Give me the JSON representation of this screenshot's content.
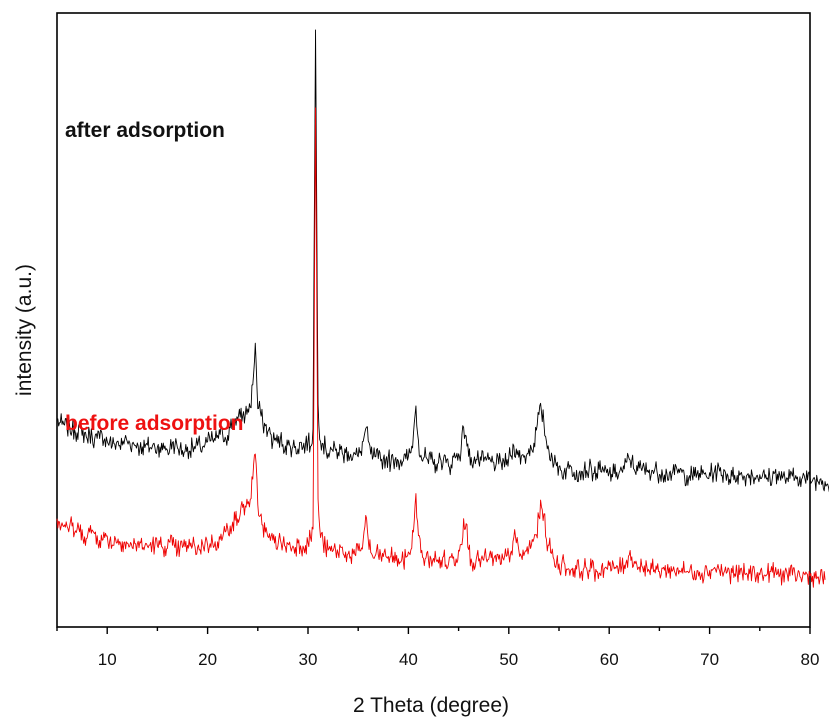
{
  "chart_data": {
    "type": "line",
    "title": "",
    "xlabel": "2 Theta (degree)",
    "ylabel": "intensity (a.u.)",
    "xlim": [
      5,
      80
    ],
    "x_ticks": [
      10,
      20,
      30,
      40,
      50,
      60,
      70,
      80
    ],
    "y_ticks_shown": false,
    "grid": false,
    "legend": "inline labels",
    "x_step": 0.25,
    "series": [
      {
        "name": "after adsorption",
        "color": "#000000",
        "peaks_2theta": [
          24.3,
          31.4,
          37.7,
          41.6,
          45.3,
          49.6,
          51.8,
          60.2
        ],
        "values": [
          67.4,
          66.2,
          65.5,
          65.2,
          63.7,
          65.1,
          62.7,
          63.2,
          61.8,
          64.7,
          60.7,
          61.9,
          59.2,
          61.5,
          60.4,
          59.1,
          59.4,
          59.3,
          61.1,
          59.2,
          58.2,
          58.2,
          56.1,
          56.9,
          58.1,
          56.3,
          56.5,
          59.1,
          58.0,
          57.5,
          57.2,
          56.3,
          57.4,
          54.9,
          55.7,
          55.4,
          56.5,
          55.3,
          56.0,
          55.5,
          55.7,
          55.7,
          54.4,
          56.1,
          54.2,
          55.0,
          57.6,
          56.3,
          55.2,
          54.9,
          54.1,
          53.6,
          55.6,
          53.9,
          55.9,
          54.9,
          56.4,
          56.1,
          55.7,
          56.9,
          58.0,
          58.2,
          58.9,
          58.5,
          60.7,
          61.1,
          61.2,
          59.9,
          60.7,
          64.0,
          67.0,
          68.0,
          67.8,
          68.6,
          69.3,
          69.6,
          72.2,
          73.0,
          82.7,
          100.8,
          72.3,
          71.3,
          65.9,
          64.9,
          62.4,
          61.5,
          57.7,
          59.5,
          57.3,
          59.2,
          56.7,
          56.1,
          56.5,
          55.7,
          55.8,
          55.9,
          54.8,
          57.7,
          55.4,
          56.8,
          58.1,
          55.9,
          63.4,
          237.0,
          74.3,
          58.0,
          57.0,
          55.6,
          52.9,
          55.6,
          53.7,
          54.2,
          53.3,
          54.6,
          52.1,
          53.2,
          53.6,
          52.5,
          52.0,
          52.3,
          51.4,
          53.8,
          58.1,
          63.6,
          58.3,
          52.6,
          51.6,
          51.4,
          50.6,
          49.6,
          50.5,
          50.1,
          51.3,
          48.4,
          49.9,
          51.1,
          49.6,
          50.1,
          49.6,
          50.5,
          51.5,
          53.2,
          61.3,
          73.5,
          58.5,
          52.1,
          50.8,
          51.3,
          48.4,
          50.3,
          48.1,
          48.1,
          48.8,
          49.8,
          50.6,
          48.8,
          47.4,
          47.9,
          51.3,
          51.4,
          52.7,
          54.5,
          64.2,
          60.5,
          51.6,
          51.1,
          49.5,
          50.3,
          49.4,
          49.9,
          49.4,
          49.9,
          50.2,
          49.1,
          49.0,
          48.4,
          48.3,
          48.6,
          49.6,
          47.9,
          51.1,
          51.8,
          56.1,
          54.8,
          51.2,
          51.7,
          51.2,
          51.8,
          54.9,
          55.0,
          57.3,
          63.0,
          69.8,
          71.1,
          66.0,
          58.0,
          54.0,
          53.0,
          48.2,
          47.5,
          47.2,
          45.3,
          44.7,
          46.1,
          46.2,
          46.9,
          44.7,
          45.5,
          44.4,
          45.1,
          45.6,
          45.4,
          46.0,
          45.8,
          44.1,
          44.2,
          45.9,
          44.7,
          44.7,
          44.5,
          44.3,
          43.8,
          44.1,
          44.7,
          44.6,
          45.5,
          46.1,
          49.1,
          50.4,
          49.8,
          45.8,
          47.6,
          46.5,
          45.4,
          46.4,
          44.8,
          45.7,
          45.5,
          45.2,
          45.3,
          43.7,
          45.8,
          43.5,
          44.1,
          44.5,
          43.9,
          43.6,
          45.9,
          44.6,
          44.6,
          42.9,
          43.3,
          43.2,
          43.4,
          43.0,
          43.9,
          44.2,
          43.7,
          43.9,
          42.3,
          44.5,
          44.1,
          45.3,
          44.8,
          45.2,
          43.4,
          45.5,
          44.0,
          41.6,
          42.9,
          43.4,
          43.3,
          43.4,
          42.9,
          42.5,
          43.6,
          43.5,
          43.7,
          42.3,
          43.4,
          43.6,
          42.9,
          42.1,
          42.2,
          42.6,
          41.9,
          44.5,
          43.8,
          43.3,
          42.1,
          42.1,
          42.1,
          42.0,
          43.0,
          41.9,
          42.6,
          42.7,
          42.3,
          41.7,
          41.3,
          42.5,
          41.0,
          41.3,
          40.9,
          41.6,
          41.0,
          40.6,
          39.6,
          39.0
        ]
      },
      {
        "name": "before adsorption",
        "color": "#ee0000",
        "peaks_2theta": [
          24.3,
          31.4,
          37.7,
          41.6,
          45.3,
          49.6,
          51.8,
          60.2
        ],
        "values": [
          24.5,
          23.0,
          22.7,
          21.8,
          21.2,
          21.0,
          21.3,
          18.2,
          19.9,
          18.8,
          19.7,
          16.6,
          16.0,
          18.7,
          19.6,
          18.0,
          17.1,
          15.0,
          15.1,
          16.3,
          17.0,
          14.8,
          13.0,
          16.8,
          14.0,
          14.6,
          14.5,
          14.4,
          13.8,
          12.6,
          11.8,
          13.6,
          13.6,
          14.4,
          11.2,
          12.6,
          12.6,
          13.0,
          13.5,
          13.0,
          12.7,
          13.2,
          12.1,
          12.5,
          11.6,
          14.2,
          12.9,
          11.9,
          10.3,
          11.9,
          12.0,
          12.3,
          12.9,
          12.5,
          12.7,
          12.2,
          11.9,
          11.0,
          13.6,
          14.1,
          13.1,
          13.6,
          14.1,
          14.5,
          14.4,
          15.5,
          16.3,
          18.7,
          20.3,
          21.3,
          23.0,
          23.8,
          24.4,
          26.5,
          29.4,
          30.0,
          30.9,
          32.9,
          41.7,
          52.6,
          30.5,
          25.8,
          21.7,
          18.7,
          16.7,
          15.0,
          15.2,
          16.7,
          12.5,
          15.3,
          13.6,
          12.3,
          13.6,
          12.1,
          12.6,
          12.0,
          13.9,
          12.7,
          12.6,
          12.8,
          14.1,
          16.3,
          20.0,
          203.1,
          33.1,
          16.3,
          14.4,
          11.7,
          10.8,
          10.5,
          10.6,
          10.6,
          9.5,
          12.1,
          9.3,
          10.0,
          9.2,
          7.9,
          9.2,
          8.4,
          10.7,
          10.5,
          15.4,
          25.9,
          15.4,
          9.8,
          7.4,
          8.9,
          8.8,
          8.4,
          8.0,
          8.2,
          8.1,
          7.9,
          8.3,
          6.1,
          7.1,
          5.6,
          5.6,
          7.7,
          10.0,
          11.0,
          18.7,
          35.4,
          17.1,
          9.7,
          7.3,
          7.4,
          6.5,
          7.1,
          7.2,
          6.8,
          5.2,
          6.5,
          8.0,
          4.4,
          4.9,
          7.6,
          7.9,
          7.0,
          10.8,
          13.3,
          24.5,
          22.3,
          11.1,
          7.0,
          5.3,
          6.7,
          6.1,
          7.0,
          6.4,
          7.3,
          6.8,
          7.5,
          7.1,
          5.8,
          6.9,
          4.8,
          6.5,
          8.1,
          8.6,
          10.4,
          16.3,
          14.0,
          10.7,
          8.1,
          8.4,
          10.4,
          11.8,
          13.0,
          15.8,
          17.5,
          25.2,
          29.7,
          26.6,
          15.5,
          12.9,
          9.4,
          6.8,
          5.4,
          4.8,
          4.2,
          5.5,
          2.6,
          2.5,
          2.3,
          2.8,
          2.6,
          2.7,
          1.6,
          3.1,
          3.0,
          2.1,
          3.0,
          1.5,
          1.4,
          0.9,
          3.8,
          2.6,
          2.9,
          4.1,
          2.2,
          2.7,
          4.1,
          3.0,
          3.7,
          4.3,
          6.5,
          8.7,
          7.9,
          5.9,
          4.5,
          3.5,
          3.9,
          4.0,
          3.7,
          1.8,
          2.6,
          2.2,
          2.4,
          1.5,
          3.0,
          2.1,
          1.3,
          3.1,
          1.6,
          1.6,
          2.7,
          1.9,
          3.0,
          1.3,
          1.6,
          1.4,
          0.9,
          1.7,
          1.9,
          1.3,
          0.9,
          1.1,
          2.1,
          1.9,
          2.0,
          3.3,
          3.1,
          1.8,
          1.5,
          1.8,
          1.3,
          0.4,
          1.0,
          0.5,
          0.5,
          0.2,
          0.8,
          0.5,
          0.2,
          0.5,
          1.4,
          0.6,
          1.1,
          0.1,
          0.1,
          0.0,
          0.4,
          1.6,
          1.2,
          1.2,
          0.5,
          0.1,
          -0.3,
          1.4,
          -0.1,
          -0.4,
          0.0,
          0.5,
          -0.1,
          -0.8,
          -1.1,
          0.1,
          0.1,
          -0.3,
          -0.6,
          -1.4,
          -0.9,
          -1.7,
          -1.4,
          -2.1
        ]
      }
    ]
  }
}
